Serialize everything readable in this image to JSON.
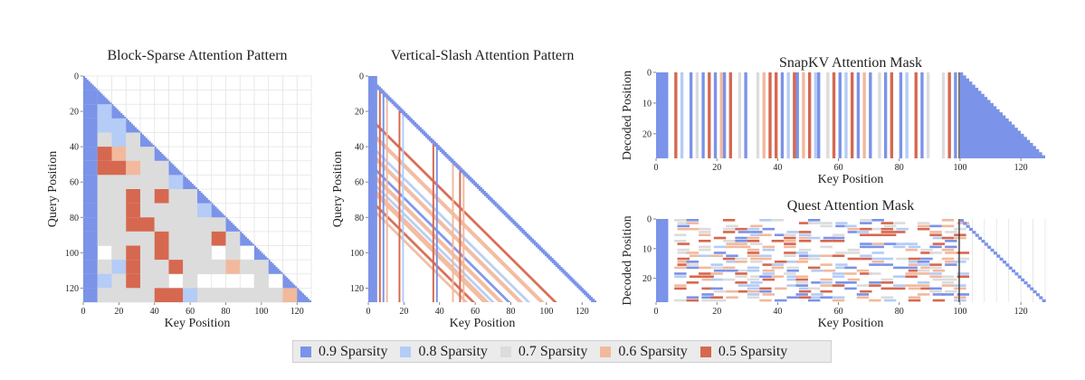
{
  "colors": {
    "s09": "#7b93e8",
    "s08": "#b4ccf6",
    "s07": "#dcdcdc",
    "s06": "#f2b99d",
    "s05": "#d66850",
    "grid": "#e3e3e3",
    "axis": "#555555",
    "divider": "#222222"
  },
  "legend": {
    "items": [
      {
        "label": "0.9 Sparsity",
        "color_key": "s09"
      },
      {
        "label": "0.8 Sparsity",
        "color_key": "s08"
      },
      {
        "label": "0.7 Sparsity",
        "color_key": "s07"
      },
      {
        "label": "0.6 Sparsity",
        "color_key": "s06"
      },
      {
        "label": "0.5 Sparsity",
        "color_key": "s05"
      }
    ]
  },
  "chart_data": [
    {
      "id": "block",
      "type": "heatmap",
      "title": "Block-Sparse Attention Pattern",
      "xlabel": "Key Position",
      "ylabel": "Query Position",
      "xlim": [
        0,
        128
      ],
      "ylim": [
        0,
        128
      ],
      "xticks": [
        0,
        20,
        40,
        60,
        80,
        100,
        120
      ],
      "yticks": [
        0,
        20,
        40,
        60,
        80,
        100,
        120
      ],
      "block_size": 8,
      "diagonal_color": "s09",
      "blocks": [
        [
          "s09"
        ],
        [
          "s09",
          "s08"
        ],
        [
          "s09",
          "s08",
          "s07"
        ],
        [
          "s09",
          "s08",
          "s08",
          "s07"
        ],
        [
          "s09",
          "s07",
          "s08",
          "s07",
          "s07"
        ],
        [
          "s09",
          "s05",
          "s06",
          "s07",
          "s07",
          "s06"
        ],
        [
          "s09",
          "s05",
          "s05",
          "s06",
          "s07",
          "s07",
          "s06"
        ],
        [
          "s09",
          "s07",
          "s07",
          "s07",
          "s07",
          "s07",
          "s08",
          "s07"
        ],
        [
          "s09",
          "s07",
          "s07",
          "s05",
          "s07",
          "s05",
          "s07",
          "s07",
          "s07"
        ],
        [
          "s09",
          "s07",
          "s07",
          "s05",
          "s07",
          "s07",
          "s07",
          "s07",
          "s08",
          "s07"
        ],
        [
          "s09",
          "s07",
          "s07",
          "s05",
          "s05",
          "s07",
          "s07",
          "s07",
          "s07",
          "s07",
          "s07"
        ],
        [
          "s09",
          "s07",
          "s07",
          "s07",
          "s07",
          "s05",
          "s07",
          "s07",
          "s07",
          "s05",
          "s07",
          "s07"
        ],
        [
          "s09",
          "w",
          "s07",
          "s05",
          "s07",
          "s05",
          "s07",
          "s07",
          "s07",
          "w",
          "s07",
          "w",
          "w"
        ],
        [
          "s09",
          "s07",
          "s08",
          "s05",
          "s07",
          "s07",
          "s05",
          "s07",
          "s07",
          "s07",
          "s06",
          "s07",
          "s07",
          "s07"
        ],
        [
          "s09",
          "s08",
          "s07",
          "s05",
          "s07",
          "s07",
          "w",
          "s07",
          "w",
          "w",
          "w",
          "w",
          "s07",
          "w",
          "w"
        ],
        [
          "s09",
          "s07",
          "s07",
          "s07",
          "s07",
          "s05",
          "s05",
          "s08",
          "s07",
          "s07",
          "s07",
          "s07",
          "s07",
          "s07",
          "s06",
          "s09"
        ]
      ]
    },
    {
      "id": "vslash",
      "type": "heatmap",
      "title": "Vertical-Slash Attention Pattern",
      "xlabel": "Key Position",
      "ylabel": "Query Position",
      "xlim": [
        0,
        128
      ],
      "ylim": [
        0,
        128
      ],
      "xticks": [
        0,
        20,
        40,
        60,
        80,
        100,
        120
      ],
      "yticks": [
        0,
        20,
        40,
        60,
        80,
        100,
        120
      ],
      "verticals": [
        {
          "x": 0,
          "w": 5,
          "color": "s09"
        },
        {
          "x": 6,
          "w": 1,
          "color": "s05"
        },
        {
          "x": 8,
          "w": 1,
          "color": "s09"
        },
        {
          "x": 10,
          "w": 1,
          "color": "s06"
        },
        {
          "x": 17,
          "w": 1,
          "color": "s05"
        },
        {
          "x": 19,
          "w": 1,
          "color": "s08"
        },
        {
          "x": 36,
          "w": 1,
          "color": "s05"
        },
        {
          "x": 38,
          "w": 1,
          "color": "s09"
        },
        {
          "x": 47,
          "w": 1,
          "color": "s06"
        },
        {
          "x": 51,
          "w": 1,
          "color": "s05"
        },
        {
          "x": 53,
          "w": 1,
          "color": "s06"
        }
      ],
      "slashes": [
        {
          "offset": 0,
          "w": 3,
          "color": "s09"
        },
        {
          "offset": 24,
          "w": 2,
          "color": "s05"
        },
        {
          "offset": 32,
          "w": 3,
          "color": "s06"
        },
        {
          "offset": 39,
          "w": 2,
          "color": "s08"
        },
        {
          "offset": 44,
          "w": 3,
          "color": "s06"
        },
        {
          "offset": 50,
          "w": 2,
          "color": "s09"
        },
        {
          "offset": 55,
          "w": 3,
          "color": "s06"
        },
        {
          "offset": 59,
          "w": 2,
          "color": "s08"
        },
        {
          "offset": 64,
          "w": 4,
          "color": "s06"
        },
        {
          "offset": 70,
          "w": 2,
          "color": "s05"
        },
        {
          "offset": 74,
          "w": 2,
          "color": "s06"
        }
      ]
    },
    {
      "id": "snapkv",
      "type": "heatmap",
      "title": "SnapKV Attention Mask",
      "xlabel": "Key Position",
      "ylabel": "Decoded Position",
      "xlim": [
        0,
        128
      ],
      "ylim": [
        0,
        28
      ],
      "xticks": [
        0,
        20,
        40,
        60,
        80,
        100,
        120
      ],
      "yticks": [
        0,
        10,
        20
      ],
      "prefill_end": 100,
      "columns": [
        {
          "x": 0,
          "w": 4,
          "color": "s09"
        },
        {
          "x": 6,
          "w": 1,
          "color": "s05"
        },
        {
          "x": 8,
          "w": 1,
          "color": "s08"
        },
        {
          "x": 11,
          "w": 1,
          "color": "s09"
        },
        {
          "x": 13,
          "w": 1,
          "color": "s07"
        },
        {
          "x": 15,
          "w": 1,
          "color": "s09"
        },
        {
          "x": 17,
          "w": 1,
          "color": "s05"
        },
        {
          "x": 19,
          "w": 1,
          "color": "s09"
        },
        {
          "x": 21,
          "w": 1,
          "color": "s06"
        },
        {
          "x": 22,
          "w": 1,
          "color": "s09"
        },
        {
          "x": 24,
          "w": 1,
          "color": "s05"
        },
        {
          "x": 27,
          "w": 1,
          "color": "s07"
        },
        {
          "x": 29,
          "w": 1,
          "color": "s09"
        },
        {
          "x": 33,
          "w": 1,
          "color": "s07"
        },
        {
          "x": 35,
          "w": 1,
          "color": "s06"
        },
        {
          "x": 37,
          "w": 1,
          "color": "s05"
        },
        {
          "x": 39,
          "w": 1,
          "color": "s05"
        },
        {
          "x": 41,
          "w": 1,
          "color": "s09"
        },
        {
          "x": 43,
          "w": 1,
          "color": "s08"
        },
        {
          "x": 45,
          "w": 1,
          "color": "s05"
        },
        {
          "x": 46,
          "w": 1,
          "color": "s09"
        },
        {
          "x": 48,
          "w": 1,
          "color": "s06"
        },
        {
          "x": 50,
          "w": 1,
          "color": "s05"
        },
        {
          "x": 52,
          "w": 1,
          "color": "s08"
        },
        {
          "x": 53,
          "w": 1,
          "color": "s09"
        },
        {
          "x": 56,
          "w": 1,
          "color": "s07"
        },
        {
          "x": 58,
          "w": 1,
          "color": "s05"
        },
        {
          "x": 60,
          "w": 1,
          "color": "s09"
        },
        {
          "x": 62,
          "w": 1,
          "color": "s08"
        },
        {
          "x": 64,
          "w": 1,
          "color": "s05"
        },
        {
          "x": 66,
          "w": 1,
          "color": "s09"
        },
        {
          "x": 68,
          "w": 1,
          "color": "s06"
        },
        {
          "x": 70,
          "w": 1,
          "color": "s09"
        },
        {
          "x": 73,
          "w": 1,
          "color": "s07"
        },
        {
          "x": 75,
          "w": 1,
          "color": "s09"
        },
        {
          "x": 77,
          "w": 1,
          "color": "s05"
        },
        {
          "x": 80,
          "w": 1,
          "color": "s09"
        },
        {
          "x": 82,
          "w": 1,
          "color": "s08"
        },
        {
          "x": 85,
          "w": 1,
          "color": "s05"
        },
        {
          "x": 87,
          "w": 1,
          "color": "s09"
        },
        {
          "x": 89,
          "w": 1,
          "color": "s07"
        },
        {
          "x": 94,
          "w": 1,
          "color": "s07"
        },
        {
          "x": 96,
          "w": 1,
          "color": "s05"
        },
        {
          "x": 98,
          "w": 1,
          "color": "s09"
        }
      ]
    },
    {
      "id": "quest",
      "type": "heatmap",
      "title": "Quest Attention Mask",
      "xlabel": "Key Position",
      "ylabel": "Decoded Position",
      "xlim": [
        0,
        128
      ],
      "ylim": [
        0,
        28
      ],
      "xticks": [
        0,
        20,
        40,
        60,
        80,
        100,
        120
      ],
      "yticks": [
        0,
        10,
        20
      ],
      "prefill_end": 100,
      "sink_width": 4,
      "block_width": 4
    }
  ]
}
